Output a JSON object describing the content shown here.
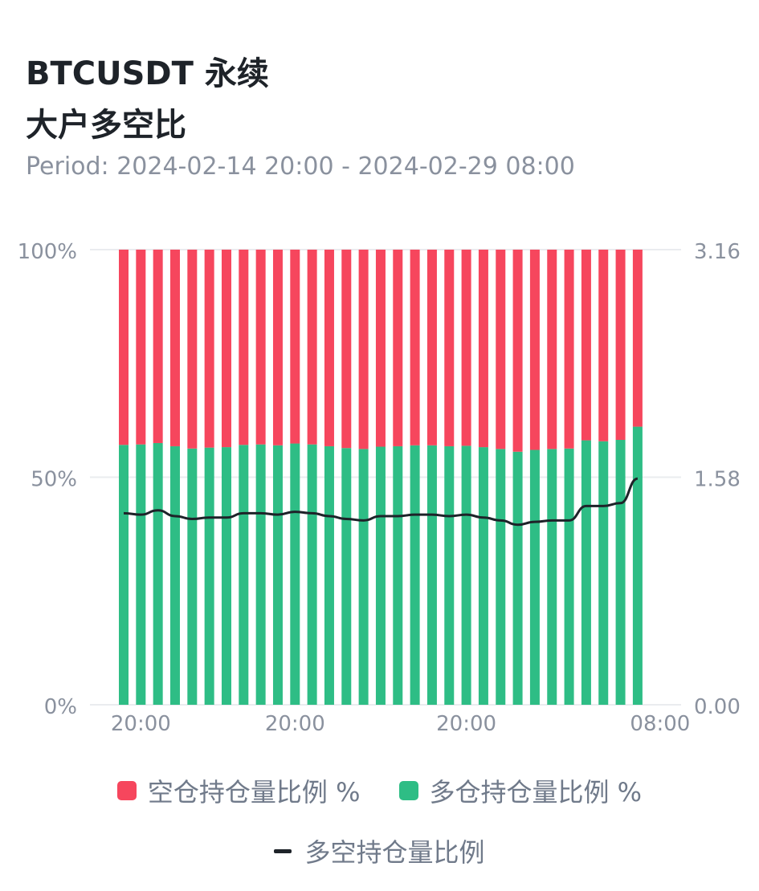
{
  "header": {
    "title_line1": "BTCUSDT 永续",
    "title_line2": "大户多空比",
    "period_label": "Period:",
    "period_start": "2024-02-14 20:00",
    "period_sep": "-",
    "period_end": "2024-02-29 08:00"
  },
  "colors": {
    "short": "#f6465d",
    "long": "#2ebd85",
    "ratio_line": "#1e2329",
    "grid": "#eaecef",
    "tick_text": "#8a919e"
  },
  "chart_data": {
    "type": "bar",
    "stacked": true,
    "categories": [
      "",
      "20:00",
      "",
      "",
      "",
      "",
      "",
      "",
      "",
      "",
      "20:00",
      "",
      "",
      "",
      "",
      "",
      "",
      "",
      "",
      "",
      "20:00",
      "",
      "",
      "",
      "",
      "",
      "",
      "",
      "",
      "",
      "08:00"
    ],
    "series": [
      {
        "name": "多仓持仓量比例 %",
        "axis": "left",
        "values": [
          57.1,
          57.2,
          57.5,
          56.8,
          56.3,
          56.5,
          56.6,
          57.1,
          57.2,
          57.0,
          57.4,
          57.2,
          56.8,
          56.4,
          56.2,
          56.7,
          56.8,
          57.0,
          57.0,
          56.8,
          56.9,
          56.6,
          56.2,
          55.6,
          56.0,
          56.2,
          56.3,
          58.1,
          57.9,
          58.2,
          61.1
        ]
      },
      {
        "name": "空仓持仓量比例 %",
        "axis": "left",
        "values": [
          42.9,
          42.8,
          42.5,
          43.2,
          43.7,
          43.5,
          43.4,
          42.9,
          42.8,
          43.0,
          42.6,
          42.8,
          43.2,
          43.6,
          43.8,
          43.3,
          43.2,
          43.0,
          43.0,
          43.2,
          43.1,
          43.4,
          43.8,
          44.4,
          44.0,
          43.8,
          43.7,
          41.9,
          42.1,
          41.8,
          38.9
        ]
      },
      {
        "name": "多空持仓量比例",
        "type": "line",
        "axis": "right",
        "values": [
          1.33,
          1.32,
          1.35,
          1.31,
          1.29,
          1.3,
          1.3,
          1.33,
          1.33,
          1.32,
          1.34,
          1.33,
          1.31,
          1.29,
          1.28,
          1.31,
          1.31,
          1.32,
          1.32,
          1.31,
          1.32,
          1.3,
          1.28,
          1.25,
          1.27,
          1.28,
          1.28,
          1.38,
          1.38,
          1.4,
          1.57
        ]
      }
    ],
    "y_left": {
      "ticks": [
        "100%",
        "50%",
        "0%"
      ],
      "range": [
        0,
        100
      ]
    },
    "y_right": {
      "ticks": [
        "3.16",
        "1.58",
        "0.00"
      ],
      "range": [
        0,
        3.16
      ]
    },
    "grid": true,
    "legend": [
      "空仓持仓量比例 %",
      "多仓持仓量比例 %",
      "多空持仓量比例"
    ],
    "legend_position": "bottom"
  }
}
